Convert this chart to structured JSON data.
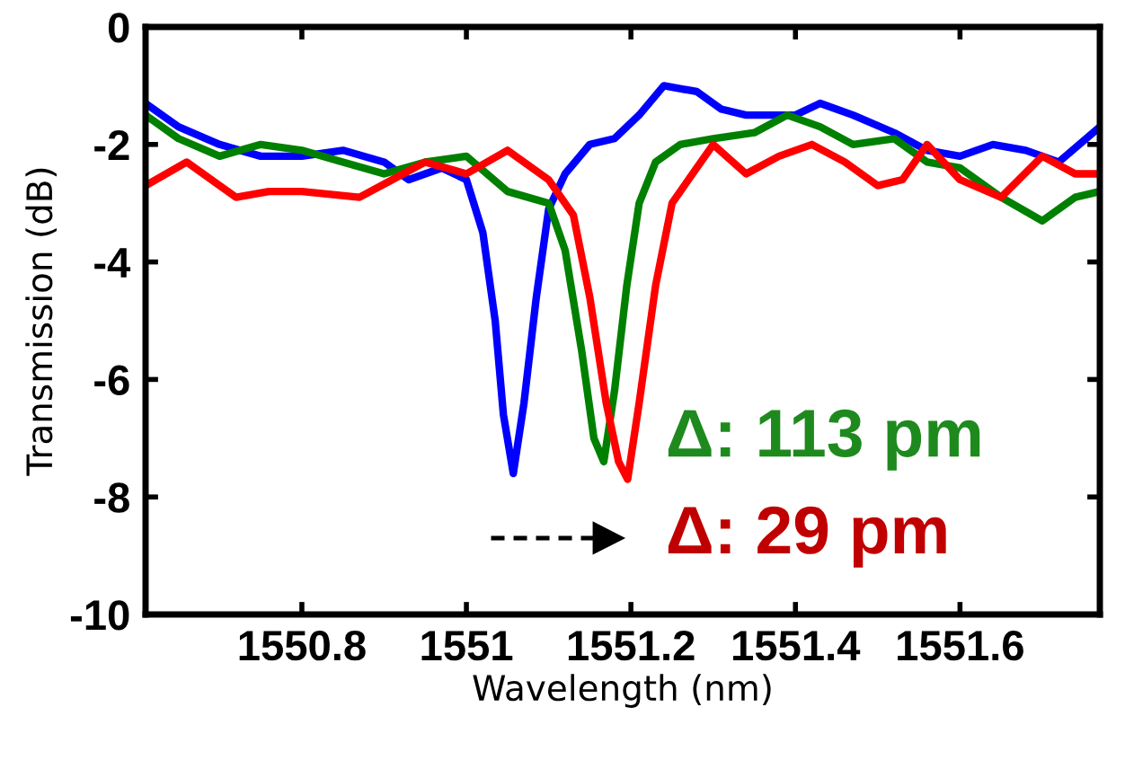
{
  "chart_data": {
    "type": "line",
    "xlabel": "Wavelength (nm)",
    "ylabel": "Transmission (dB)",
    "xlim": [
      1550.61,
      1551.77
    ],
    "xticks": [
      1550.8,
      1551,
      1551.2,
      1551.4,
      1551.6
    ],
    "ylim": [
      -10,
      0
    ],
    "yticks": [
      -10,
      -8,
      -6,
      -4,
      -2,
      0
    ],
    "grid": false,
    "legend": false,
    "marker": "none",
    "line_style": "solid",
    "series": [
      {
        "color": "#0000ff",
        "x": [
          1550.61,
          1550.65,
          1550.7,
          1550.75,
          1550.8,
          1550.85,
          1550.9,
          1550.93,
          1550.97,
          1551.0,
          1551.02,
          1551.035,
          1551.045,
          1551.057,
          1551.07,
          1551.085,
          1551.1,
          1551.12,
          1551.15,
          1551.18,
          1551.21,
          1551.24,
          1551.28,
          1551.31,
          1551.34,
          1551.4,
          1551.43,
          1551.47,
          1551.52,
          1551.56,
          1551.6,
          1551.64,
          1551.68,
          1551.72,
          1551.77
        ],
        "values": [
          -1.3,
          -1.7,
          -2.0,
          -2.2,
          -2.2,
          -2.1,
          -2.3,
          -2.6,
          -2.4,
          -2.6,
          -3.5,
          -5.0,
          -6.6,
          -7.6,
          -6.4,
          -4.6,
          -3.1,
          -2.5,
          -2.0,
          -1.9,
          -1.5,
          -1.0,
          -1.1,
          -1.4,
          -1.5,
          -1.5,
          -1.3,
          -1.5,
          -1.8,
          -2.1,
          -2.2,
          -2.0,
          -2.1,
          -2.3,
          -1.7
        ]
      },
      {
        "color": "#008000",
        "x": [
          1550.61,
          1550.65,
          1550.7,
          1550.75,
          1550.8,
          1550.85,
          1550.9,
          1550.95,
          1551.0,
          1551.05,
          1551.1,
          1551.12,
          1551.14,
          1551.155,
          1551.167,
          1551.18,
          1551.195,
          1551.21,
          1551.23,
          1551.26,
          1551.3,
          1551.35,
          1551.39,
          1551.43,
          1551.47,
          1551.52,
          1551.56,
          1551.6,
          1551.65,
          1551.7,
          1551.74,
          1551.77
        ],
        "values": [
          -1.5,
          -1.9,
          -2.2,
          -2.0,
          -2.1,
          -2.3,
          -2.5,
          -2.3,
          -2.2,
          -2.8,
          -3.0,
          -3.8,
          -5.5,
          -7.0,
          -7.4,
          -6.2,
          -4.4,
          -3.0,
          -2.3,
          -2.0,
          -1.9,
          -1.8,
          -1.5,
          -1.7,
          -2.0,
          -1.9,
          -2.3,
          -2.4,
          -2.9,
          -3.3,
          -2.9,
          -2.8
        ]
      },
      {
        "color": "#ff0000",
        "x": [
          1550.61,
          1550.66,
          1550.72,
          1550.76,
          1550.8,
          1550.87,
          1550.91,
          1550.95,
          1551.0,
          1551.05,
          1551.1,
          1551.13,
          1551.15,
          1551.17,
          1551.185,
          1551.196,
          1551.21,
          1551.23,
          1551.25,
          1551.28,
          1551.3,
          1551.34,
          1551.38,
          1551.42,
          1551.46,
          1551.5,
          1551.53,
          1551.56,
          1551.6,
          1551.65,
          1551.7,
          1551.74,
          1551.77
        ],
        "values": [
          -2.7,
          -2.3,
          -2.9,
          -2.8,
          -2.8,
          -2.9,
          -2.6,
          -2.3,
          -2.5,
          -2.1,
          -2.6,
          -3.2,
          -4.6,
          -6.4,
          -7.4,
          -7.7,
          -6.4,
          -4.4,
          -3.0,
          -2.4,
          -2.0,
          -2.5,
          -2.2,
          -2.0,
          -2.3,
          -2.7,
          -2.6,
          -2.0,
          -2.6,
          -2.9,
          -2.2,
          -2.5,
          -2.5
        ]
      }
    ],
    "annotations": [
      "Δ: 113 pm",
      "Δ: 29 pm"
    ]
  }
}
